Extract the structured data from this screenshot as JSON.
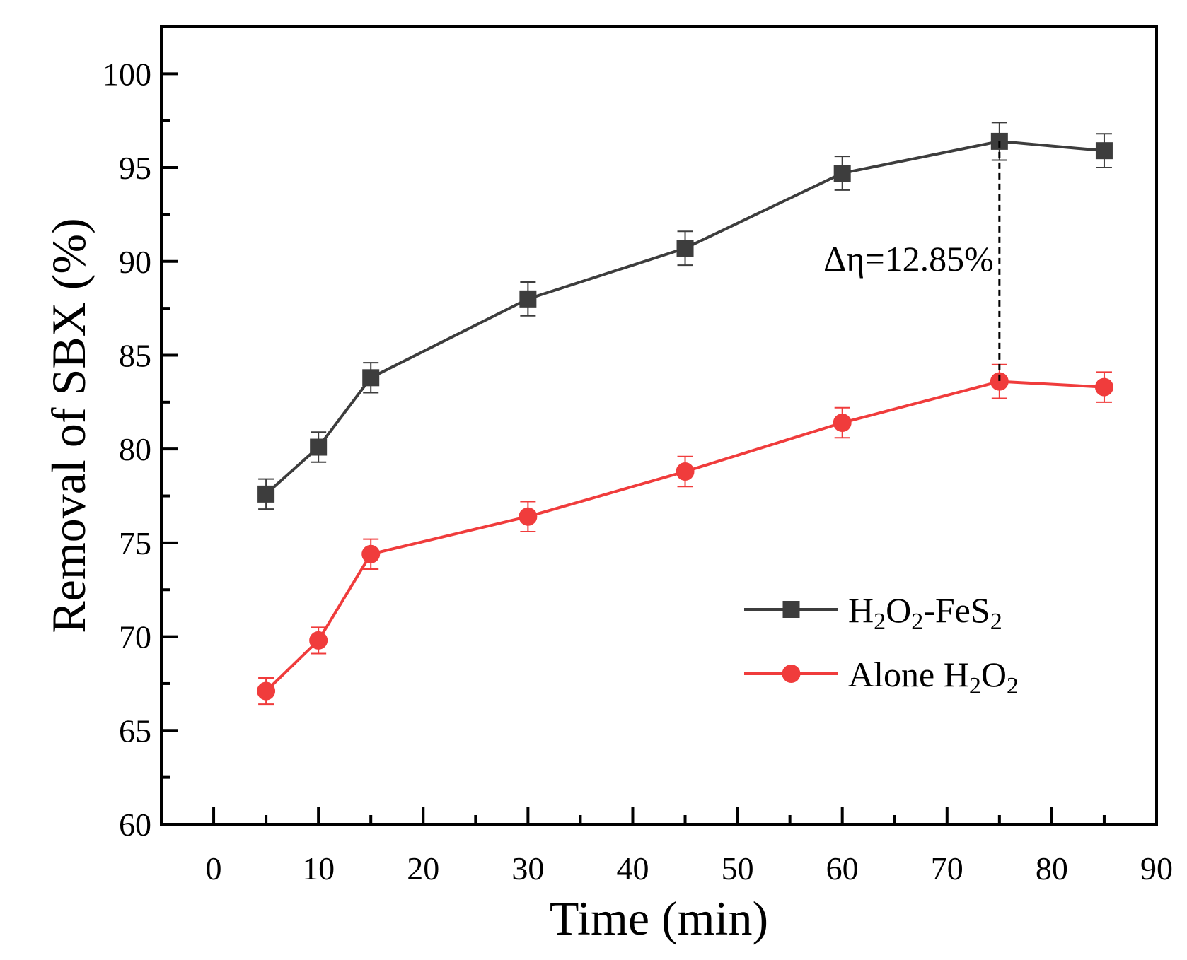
{
  "chart_data": {
    "type": "line",
    "title": "",
    "xlabel": "Time (min)",
    "ylabel": "Removal of SBX (%)",
    "xlim": [
      -5,
      90
    ],
    "ylim": [
      60,
      102.5
    ],
    "xticks": [
      0,
      10,
      20,
      30,
      40,
      50,
      60,
      70,
      80,
      90
    ],
    "yticks": [
      60,
      65,
      70,
      75,
      80,
      85,
      90,
      95,
      100
    ],
    "legend_position": "lower-right",
    "series": [
      {
        "name": "H2O2-FeS2",
        "label_main": "H",
        "label_parts": [
          {
            "t": "H",
            "sub": false
          },
          {
            "t": "2",
            "sub": true
          },
          {
            "t": "O",
            "sub": false
          },
          {
            "t": "2",
            "sub": true
          },
          {
            "t": "-FeS",
            "sub": false
          },
          {
            "t": "2",
            "sub": true
          }
        ],
        "color": "#3d3d3d",
        "marker": "square",
        "x": [
          5,
          10,
          15,
          30,
          45,
          60,
          75,
          85
        ],
        "y": [
          77.6,
          80.1,
          83.8,
          88.0,
          90.7,
          94.7,
          96.4,
          95.9
        ],
        "err": [
          0.8,
          0.8,
          0.8,
          0.9,
          0.9,
          0.9,
          1.0,
          0.9
        ]
      },
      {
        "name": "Alone H2O2",
        "label_parts": [
          {
            "t": "Alone H",
            "sub": false
          },
          {
            "t": "2",
            "sub": true
          },
          {
            "t": "O",
            "sub": false
          },
          {
            "t": "2",
            "sub": true
          }
        ],
        "color": "#f03c3c",
        "marker": "circle",
        "x": [
          5,
          10,
          15,
          30,
          45,
          60,
          75,
          85
        ],
        "y": [
          67.1,
          69.8,
          74.4,
          76.4,
          78.8,
          81.4,
          83.6,
          83.3
        ],
        "err": [
          0.7,
          0.7,
          0.8,
          0.8,
          0.8,
          0.8,
          0.9,
          0.8
        ]
      }
    ],
    "annotation": {
      "text": "Δη=12.85%",
      "x": 75,
      "y_from": 96.4,
      "y_to": 83.6,
      "label_y": 89.5
    }
  }
}
